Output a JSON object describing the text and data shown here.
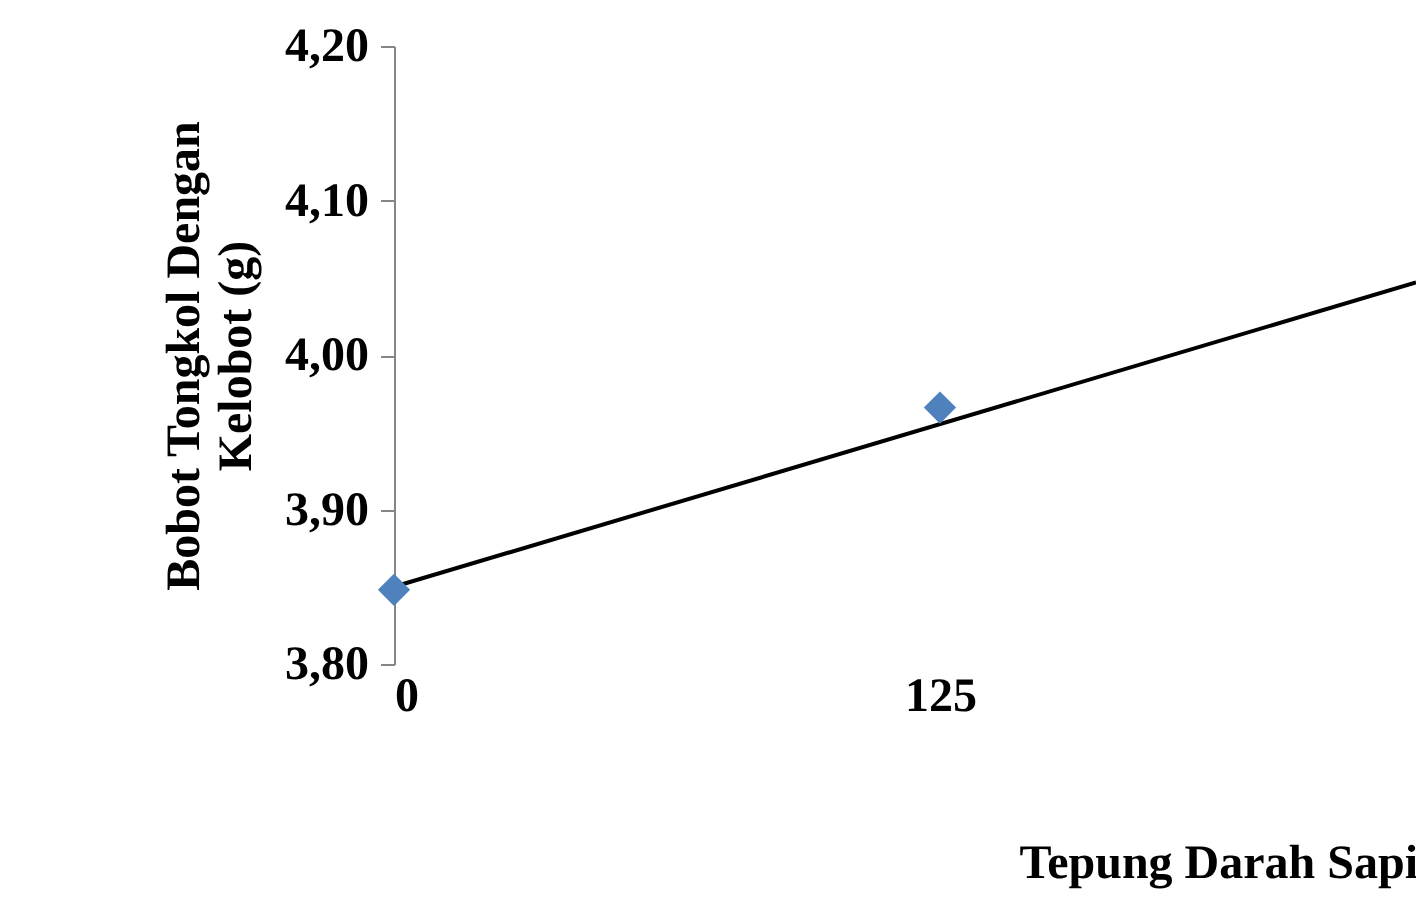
{
  "chart_data": {
    "type": "scatter",
    "xlabel": "Tepung Darah Sapi",
    "ylabel": "Bobot Tongkol Dengan\nKelobot (g)",
    "series": [
      {
        "color": "#4f81bd",
        "x": [
          0,
          125
        ],
        "values": [
          3.848,
          3.966
        ],
        "marker": "diamond"
      },
      {
        "type": "line",
        "color": "#000000",
        "x": [
          0,
          234
        ],
        "values": [
          3.85,
          4.047
        ],
        "line_style": "solid",
        "marker": "none"
      }
    ],
    "xlim": [
      0,
      234
    ],
    "xticks": [
      0,
      125
    ],
    "ylim": [
      3.8,
      4.2
    ],
    "yticks": [
      {
        "value": 3.8,
        "label": "3,80"
      },
      {
        "value": 3.9,
        "label": "3,90"
      },
      {
        "value": 4.0,
        "label": "4,00"
      },
      {
        "value": 4.1,
        "label": "4,10"
      },
      {
        "value": 4.2,
        "label": "4,20"
      }
    ],
    "grid": false
  }
}
